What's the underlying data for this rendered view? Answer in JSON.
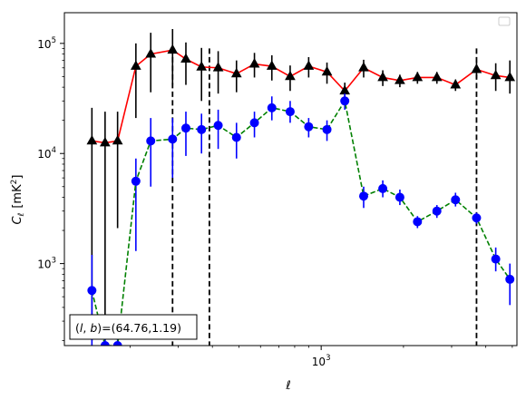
{
  "chart_data": {
    "type": "line",
    "xscale": "log",
    "yscale": "log",
    "xlim": [
      115,
      5200
    ],
    "ylim": [
      180,
      190000
    ],
    "xlabel": "ℓ",
    "ylabel_main": "C",
    "ylabel_sub": "ℓ",
    "ylabel_unit_open": "[mK",
    "ylabel_unit_sup": "2",
    "ylabel_unit_close": "]",
    "y_ticks": [
      {
        "value": 1000,
        "base": "10",
        "exp": "3"
      },
      {
        "value": 10000,
        "base": "10",
        "exp": "4"
      },
      {
        "value": 100000,
        "base": "10",
        "exp": "5"
      }
    ],
    "x_ticks": [
      {
        "value": 1000,
        "base": "10",
        "exp": "3"
      }
    ],
    "annotation": "(l, b)=(64.76,1.19)",
    "annotation_parts": {
      "open": "(",
      "l": "l",
      "comma": ", ",
      "b": "b",
      "rest": ")=(64.76,1.19)"
    },
    "vlines": [
      286,
      390,
      3700
    ],
    "legend_placement": "top-right",
    "legend_entries": [],
    "series": [
      {
        "style": "solid",
        "line_color": "#ff0000",
        "marker": "triangle",
        "marker_color": "#000000",
        "errorbar_color": "#000000",
        "points": [
          {
            "x": 145,
            "y": 13000,
            "lo": 200,
            "hi": 26000
          },
          {
            "x": 162,
            "y": 12500,
            "lo": 200,
            "hi": 24000
          },
          {
            "x": 180,
            "y": 13000,
            "lo": 2100,
            "hi": 24000
          },
          {
            "x": 210,
            "y": 62000,
            "lo": 21000,
            "hi": 100000
          },
          {
            "x": 238,
            "y": 80000,
            "lo": 36000,
            "hi": 125000
          },
          {
            "x": 286,
            "y": 87000,
            "lo": 42000,
            "hi": 135000
          },
          {
            "x": 320,
            "y": 72000,
            "lo": 42000,
            "hi": 102000
          },
          {
            "x": 365,
            "y": 61000,
            "lo": 30000,
            "hi": 91000
          },
          {
            "x": 420,
            "y": 60000,
            "lo": 35000,
            "hi": 85000
          },
          {
            "x": 490,
            "y": 53000,
            "lo": 36000,
            "hi": 70000
          },
          {
            "x": 570,
            "y": 65000,
            "lo": 49000,
            "hi": 82000
          },
          {
            "x": 660,
            "y": 62000,
            "lo": 46000,
            "hi": 78000
          },
          {
            "x": 770,
            "y": 50000,
            "lo": 37000,
            "hi": 63000
          },
          {
            "x": 900,
            "y": 62000,
            "lo": 49000,
            "hi": 75000
          },
          {
            "x": 1050,
            "y": 55000,
            "lo": 43000,
            "hi": 67000
          },
          {
            "x": 1220,
            "y": 37000,
            "lo": 30000,
            "hi": 44000
          },
          {
            "x": 1430,
            "y": 60000,
            "lo": 49000,
            "hi": 71000
          },
          {
            "x": 1680,
            "y": 49000,
            "lo": 41000,
            "hi": 57000
          },
          {
            "x": 1940,
            "y": 46000,
            "lo": 40000,
            "hi": 52000
          },
          {
            "x": 2250,
            "y": 49000,
            "lo": 43000,
            "hi": 55000
          },
          {
            "x": 2650,
            "y": 49000,
            "lo": 43000,
            "hi": 55000
          },
          {
            "x": 3100,
            "y": 42000,
            "lo": 37000,
            "hi": 47000
          },
          {
            "x": 3700,
            "y": 58000,
            "lo": 48000,
            "hi": 68000
          },
          {
            "x": 4350,
            "y": 51000,
            "lo": 37000,
            "hi": 66000
          },
          {
            "x": 4900,
            "y": 49000,
            "lo": 35000,
            "hi": 70000
          }
        ]
      },
      {
        "style": "dashed",
        "line_color": "#008000",
        "marker": "circle",
        "marker_color": "#0000ff",
        "errorbar_color": "#0000ff",
        "points": [
          {
            "x": 145,
            "y": 570,
            "lo": 180,
            "hi": 1200
          },
          {
            "x": 162,
            "y": 180,
            "lo": 180,
            "hi": 290
          },
          {
            "x": 180,
            "y": 180,
            "lo": 180,
            "hi": 290
          },
          {
            "x": 210,
            "y": 5600,
            "lo": 1300,
            "hi": 9000
          },
          {
            "x": 238,
            "y": 13000,
            "lo": 5000,
            "hi": 21000
          },
          {
            "x": 286,
            "y": 13500,
            "lo": 6000,
            "hi": 21000
          },
          {
            "x": 320,
            "y": 17000,
            "lo": 9500,
            "hi": 24000
          },
          {
            "x": 365,
            "y": 16500,
            "lo": 10000,
            "hi": 23000
          },
          {
            "x": 420,
            "y": 18000,
            "lo": 11000,
            "hi": 25000
          },
          {
            "x": 490,
            "y": 14000,
            "lo": 9000,
            "hi": 19000
          },
          {
            "x": 570,
            "y": 19000,
            "lo": 14000,
            "hi": 24000
          },
          {
            "x": 660,
            "y": 26000,
            "lo": 20000,
            "hi": 33000
          },
          {
            "x": 770,
            "y": 24000,
            "lo": 19000,
            "hi": 30000
          },
          {
            "x": 900,
            "y": 17500,
            "lo": 14000,
            "hi": 21000
          },
          {
            "x": 1050,
            "y": 16500,
            "lo": 13000,
            "hi": 20000
          },
          {
            "x": 1220,
            "y": 30000,
            "lo": 25000,
            "hi": 35000
          },
          {
            "x": 1430,
            "y": 4100,
            "lo": 3200,
            "hi": 5000
          },
          {
            "x": 1680,
            "y": 4800,
            "lo": 4000,
            "hi": 5700
          },
          {
            "x": 1940,
            "y": 4000,
            "lo": 3400,
            "hi": 4700
          },
          {
            "x": 2250,
            "y": 2400,
            "lo": 2100,
            "hi": 2700
          },
          {
            "x": 2650,
            "y": 3000,
            "lo": 2600,
            "hi": 3400
          },
          {
            "x": 3100,
            "y": 3800,
            "lo": 3300,
            "hi": 4400
          },
          {
            "x": 3700,
            "y": 2600,
            "lo": 2300,
            "hi": 2900
          },
          {
            "x": 4350,
            "y": 1100,
            "lo": 850,
            "hi": 1400
          },
          {
            "x": 4900,
            "y": 720,
            "lo": 420,
            "hi": 1000
          }
        ]
      }
    ]
  }
}
